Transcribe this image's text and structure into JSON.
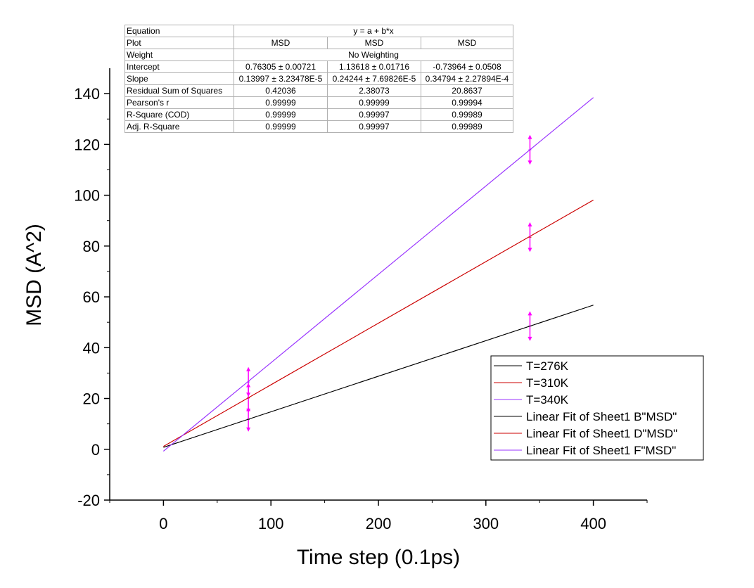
{
  "chart_data": {
    "type": "line",
    "xlabel": "Time step (0.1ps)",
    "ylabel": "MSD (A^2)",
    "xlim": [
      -50,
      450
    ],
    "ylim": [
      -20,
      150
    ],
    "x_ticks": [
      "0",
      "100",
      "200",
      "300",
      "400"
    ],
    "y_ticks": [
      "-20",
      "0",
      "20",
      "40",
      "60",
      "80",
      "100",
      "120",
      "140"
    ],
    "x_tick_values": [
      0,
      100,
      200,
      300,
      400
    ],
    "y_tick_values": [
      -20,
      0,
      20,
      40,
      60,
      80,
      100,
      120,
      140
    ],
    "grid": false,
    "legend_position": "bottom-right",
    "series": [
      {
        "name": "T=276K",
        "color": "#000000",
        "x": [
          0,
          400
        ],
        "y": [
          0.76,
          56.75
        ],
        "error_bars": [
          {
            "x": 79,
            "y": 11.8,
            "err": 3.5
          },
          {
            "x": 341,
            "y": 48.5,
            "err": 4.5
          }
        ]
      },
      {
        "name": "T=310K",
        "color": "#cc0000",
        "x": [
          0,
          400
        ],
        "y": [
          1.14,
          98.11
        ],
        "error_bars": [
          {
            "x": 79,
            "y": 20.2,
            "err": 4.5
          },
          {
            "x": 341,
            "y": 83.5,
            "err": 4.5
          }
        ]
      },
      {
        "name": "T=340K",
        "color": "#9933ff",
        "x": [
          0,
          400
        ],
        "y": [
          -0.74,
          138.44
        ],
        "error_bars": [
          {
            "x": 79,
            "y": 26.5,
            "err": 4.5
          },
          {
            "x": 341,
            "y": 117.9,
            "err": 4.5
          }
        ]
      },
      {
        "name": "Linear Fit of Sheet1 B\"MSD\"",
        "color": "#000000",
        "x": [
          0,
          400
        ],
        "y": [
          0.76,
          56.75
        ]
      },
      {
        "name": "Linear Fit of Sheet1 D\"MSD\"",
        "color": "#cc0000",
        "x": [
          0,
          400
        ],
        "y": [
          1.14,
          98.11
        ]
      },
      {
        "name": "Linear Fit of Sheet1 F\"MSD\"",
        "color": "#9933ff",
        "x": [
          0,
          400
        ],
        "y": [
          -0.74,
          138.44
        ]
      }
    ],
    "error_bar_color": "#ff00ff",
    "fit_table": {
      "rows": [
        {
          "label": "Equation",
          "span": "y = a + b*x"
        },
        {
          "label": "Plot",
          "values": [
            "MSD",
            "MSD",
            "MSD"
          ]
        },
        {
          "label": "Weight",
          "span": "No Weighting"
        },
        {
          "label": "Intercept",
          "values": [
            "0.76305 ± 0.00721",
            "1.13618 ± 0.01716",
            "-0.73964 ± 0.0508"
          ]
        },
        {
          "label": "Slope",
          "values": [
            "0.13997 ± 3.23478E-5",
            "0.24244 ± 7.69826E-5",
            "0.34794 ± 2.27894E-4"
          ]
        },
        {
          "label": "Residual Sum of Squares",
          "values": [
            "0.42036",
            "2.38073",
            "20.8637"
          ]
        },
        {
          "label": "Pearson's r",
          "values": [
            "0.99999",
            "0.99999",
            "0.99994"
          ]
        },
        {
          "label": "R-Square (COD)",
          "values": [
            "0.99999",
            "0.99997",
            "0.99989"
          ]
        },
        {
          "label": "Adj. R-Square",
          "values": [
            "0.99999",
            "0.99997",
            "0.99989"
          ]
        }
      ]
    }
  }
}
